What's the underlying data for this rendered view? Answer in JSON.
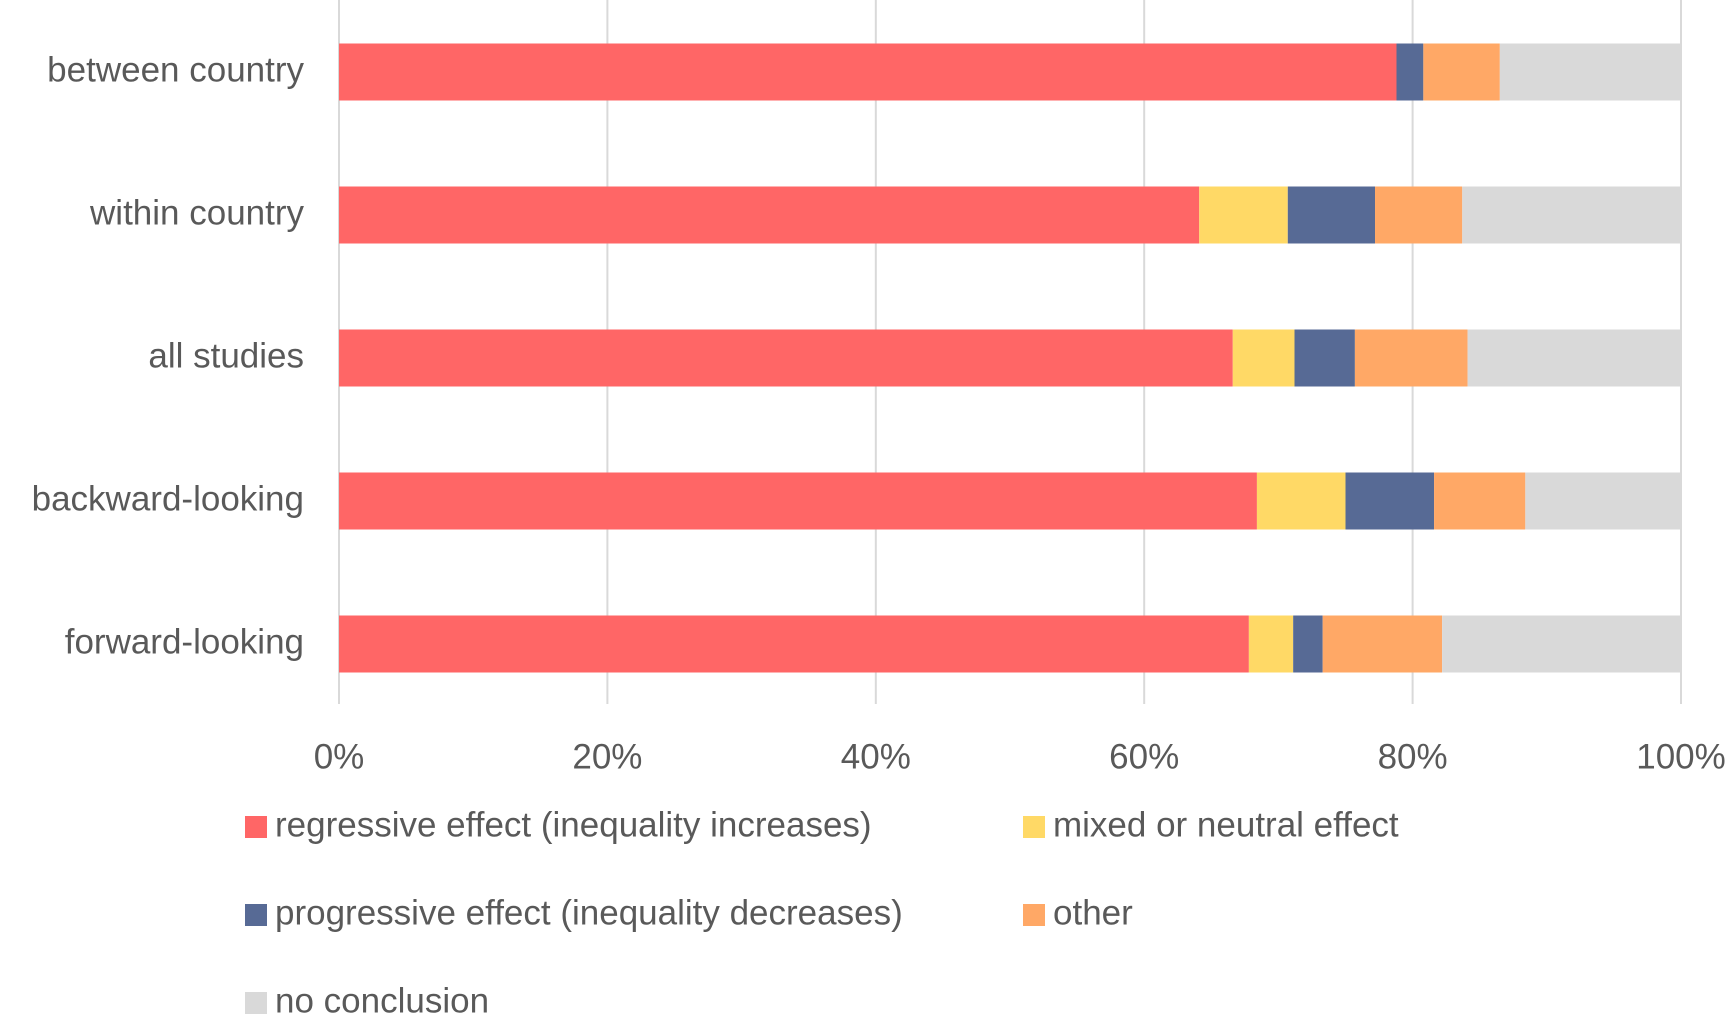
{
  "chart_data": {
    "type": "stacked-barh",
    "categories": [
      "between country",
      "within country",
      "all studies",
      "backward-looking",
      "forward-looking"
    ],
    "series": [
      {
        "name": "regressive effect (inequality increases)",
        "color": "#ff6666",
        "values": [
          78.8,
          64.1,
          66.6,
          68.4,
          67.8
        ]
      },
      {
        "name": "mixed or neutral effect",
        "color": "#ffd966",
        "values": [
          0,
          6.6,
          4.6,
          6.6,
          3.3
        ]
      },
      {
        "name": "progressive effect (inequality decreases)",
        "color": "#576a95",
        "values": [
          2.0,
          6.5,
          4.5,
          6.6,
          2.2
        ]
      },
      {
        "name": "other",
        "color": "#ffa866",
        "values": [
          5.7,
          6.5,
          8.4,
          6.8,
          8.9
        ]
      },
      {
        "name": "no conclusion",
        "color": "#d9d9d9",
        "values": [
          13.5,
          16.3,
          15.9,
          11.6,
          17.8
        ]
      }
    ],
    "xlim": [
      0,
      100
    ],
    "xticks": [
      {
        "value": 0,
        "label": "0%"
      },
      {
        "value": 20,
        "label": "20%"
      },
      {
        "value": 40,
        "label": "40%"
      },
      {
        "value": 60,
        "label": "60%"
      },
      {
        "value": 80,
        "label": "80%"
      },
      {
        "value": 100,
        "label": "100%"
      }
    ],
    "grid": true,
    "legend": "bottom"
  }
}
